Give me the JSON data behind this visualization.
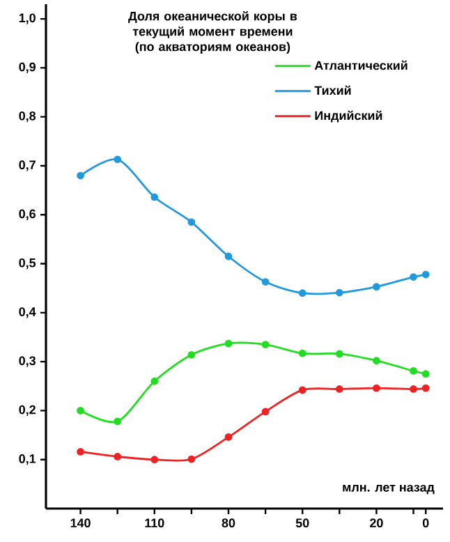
{
  "chart_data": {
    "type": "line",
    "title": "Доля океанической коры в текущий момент времени (по акваториям океанов)",
    "xlabel": "млн. лет назад",
    "x": [
      140,
      125,
      110,
      95,
      80,
      65,
      50,
      35,
      20,
      5,
      0
    ],
    "series": [
      {
        "name": "Атлантический",
        "color": "#22dd22",
        "values": [
          0.2,
          0.178,
          0.26,
          0.314,
          0.337,
          0.335,
          0.317,
          0.316,
          0.302,
          0.281,
          0.275
        ]
      },
      {
        "name": "Тихий",
        "color": "#2299dd",
        "values": [
          0.68,
          0.713,
          0.636,
          0.585,
          0.515,
          0.463,
          0.44,
          0.441,
          0.453,
          0.473,
          0.478
        ]
      },
      {
        "name": "Индийский",
        "color": "#ee2222",
        "values": [
          0.116,
          0.106,
          0.1,
          0.101,
          0.146,
          0.198,
          0.242,
          0.244,
          0.246,
          0.244,
          0.246
        ]
      }
    ],
    "xlim": [
      154,
      -7
    ],
    "xticks": [
      140,
      {
        "value": 125,
        "label": null
      },
      110,
      {
        "value": 95,
        "label": null
      },
      80,
      {
        "value": 65,
        "label": null
      },
      50,
      {
        "value": 35,
        "label": null
      },
      20,
      {
        "value": 5,
        "label": null
      },
      0
    ],
    "ylim": [
      0,
      1.03
    ],
    "yticks": [
      {
        "value": 0.1,
        "label": "0,1"
      },
      {
        "value": 0.2,
        "label": "0,2"
      },
      {
        "value": 0.3,
        "label": "0,3"
      },
      {
        "value": 0.4,
        "label": "0,4"
      },
      {
        "value": 0.5,
        "label": "0,5"
      },
      {
        "value": 0.6,
        "label": "0,6"
      },
      {
        "value": 0.7,
        "label": "0,7"
      },
      {
        "value": 0.8,
        "label": "0,8"
      },
      {
        "value": 0.9,
        "label": "0,9"
      },
      {
        "value": 1.0,
        "label": "1,0"
      }
    ],
    "legend": "top right",
    "marker": "circle",
    "grid": false
  }
}
